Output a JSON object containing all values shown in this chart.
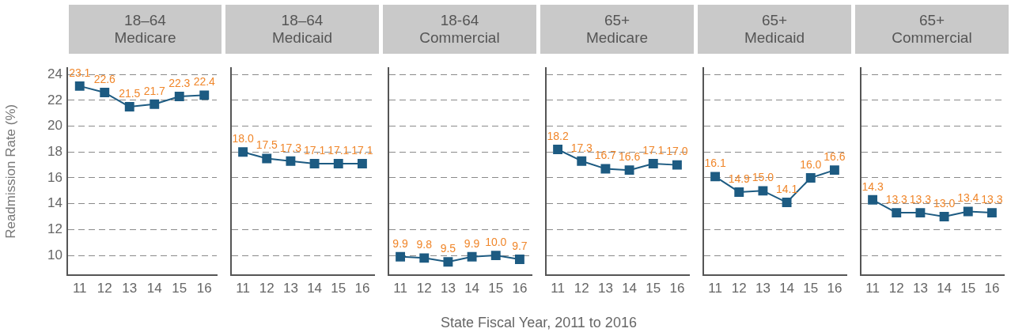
{
  "chart_data": [
    {
      "type": "line",
      "title": "18–64\nMedicare",
      "ylabel": "Readmission Rate (%)",
      "categories": [
        "11",
        "12",
        "13",
        "14",
        "15",
        "16"
      ],
      "values": [
        23.1,
        22.6,
        21.5,
        21.7,
        22.3,
        22.4
      ],
      "value_labels": [
        "23.1",
        "22.6",
        "21.5",
        "21.7",
        "22.3",
        "22.4"
      ],
      "color": "#1d5b82",
      "ylim": [
        8.5,
        24.5
      ],
      "yticks": [
        10,
        12,
        14,
        16,
        18,
        20,
        22,
        24
      ],
      "grid": "y",
      "marker": "square"
    },
    {
      "type": "line",
      "title": "18–64\nMedicaid",
      "categories": [
        "11",
        "12",
        "13",
        "14",
        "15",
        "16"
      ],
      "values": [
        18.0,
        17.5,
        17.3,
        17.1,
        17.1,
        17.1
      ],
      "value_labels": [
        "18.0",
        "17.5",
        "17.3",
        "17.1",
        "17.1",
        "17.1"
      ],
      "color": "#1d5b82",
      "ylim": [
        8.5,
        24.5
      ],
      "yticks": [
        10,
        12,
        14,
        16,
        18,
        20,
        22,
        24
      ],
      "grid": "y",
      "marker": "square",
      "tick_labels": "x"
    },
    {
      "type": "line",
      "title": "18-64\nCommercial",
      "categories": [
        "11",
        "12",
        "13",
        "14",
        "15",
        "16"
      ],
      "values": [
        9.9,
        9.8,
        9.5,
        9.9,
        10.0,
        9.7
      ],
      "value_labels": [
        "9.9",
        "9.8",
        "9.5",
        "9.9",
        "10.0",
        "9.7"
      ],
      "color": "#1d5b82",
      "ylim": [
        8.5,
        24.5
      ],
      "yticks": [
        10,
        12,
        14,
        16,
        18,
        20,
        22,
        24
      ],
      "grid": "y",
      "marker": "square",
      "tick_labels": "x"
    },
    {
      "type": "line",
      "title": "65+\nMedicare",
      "xlabel": "State Fiscal Year, 2011 to 2016",
      "categories": [
        "11",
        "12",
        "13",
        "14",
        "15",
        "16"
      ],
      "values": [
        18.2,
        17.3,
        16.7,
        16.6,
        17.1,
        17.0
      ],
      "value_labels": [
        "18.2",
        "17.3",
        "16.7",
        "16.6",
        "17.1",
        "17.0"
      ],
      "color": "#1d5b82",
      "ylim": [
        8.5,
        24.5
      ],
      "yticks": [
        10,
        12,
        14,
        16,
        18,
        20,
        22,
        24
      ],
      "grid": "y",
      "marker": "square",
      "tick_labels": "x"
    },
    {
      "type": "line",
      "title": "65+\nMedicaid",
      "categories": [
        "11",
        "12",
        "13",
        "14",
        "15",
        "16"
      ],
      "values": [
        16.1,
        14.9,
        15.0,
        14.1,
        16.0,
        16.6
      ],
      "value_labels": [
        "16.1",
        "14.9",
        "15.0",
        "14.1",
        "16.0",
        "16.6"
      ],
      "color": "#1d5b82",
      "ylim": [
        8.5,
        24.5
      ],
      "yticks": [
        10,
        12,
        14,
        16,
        18,
        20,
        22,
        24
      ],
      "grid": "y",
      "marker": "square",
      "tick_labels": "x"
    },
    {
      "type": "line",
      "title": "65+\nCommercial",
      "categories": [
        "11",
        "12",
        "13",
        "14",
        "15",
        "16"
      ],
      "values": [
        14.3,
        13.3,
        13.3,
        13.0,
        13.4,
        13.3
      ],
      "value_labels": [
        "14.3",
        "13.3",
        "13.3",
        "13.0",
        "13.4",
        "13.3"
      ],
      "color": "#1d5b82",
      "ylim": [
        8.5,
        24.5
      ],
      "yticks": [
        10,
        12,
        14,
        16,
        18,
        20,
        22,
        24
      ],
      "grid": "y",
      "marker": "square",
      "tick_labels": "x"
    }
  ]
}
